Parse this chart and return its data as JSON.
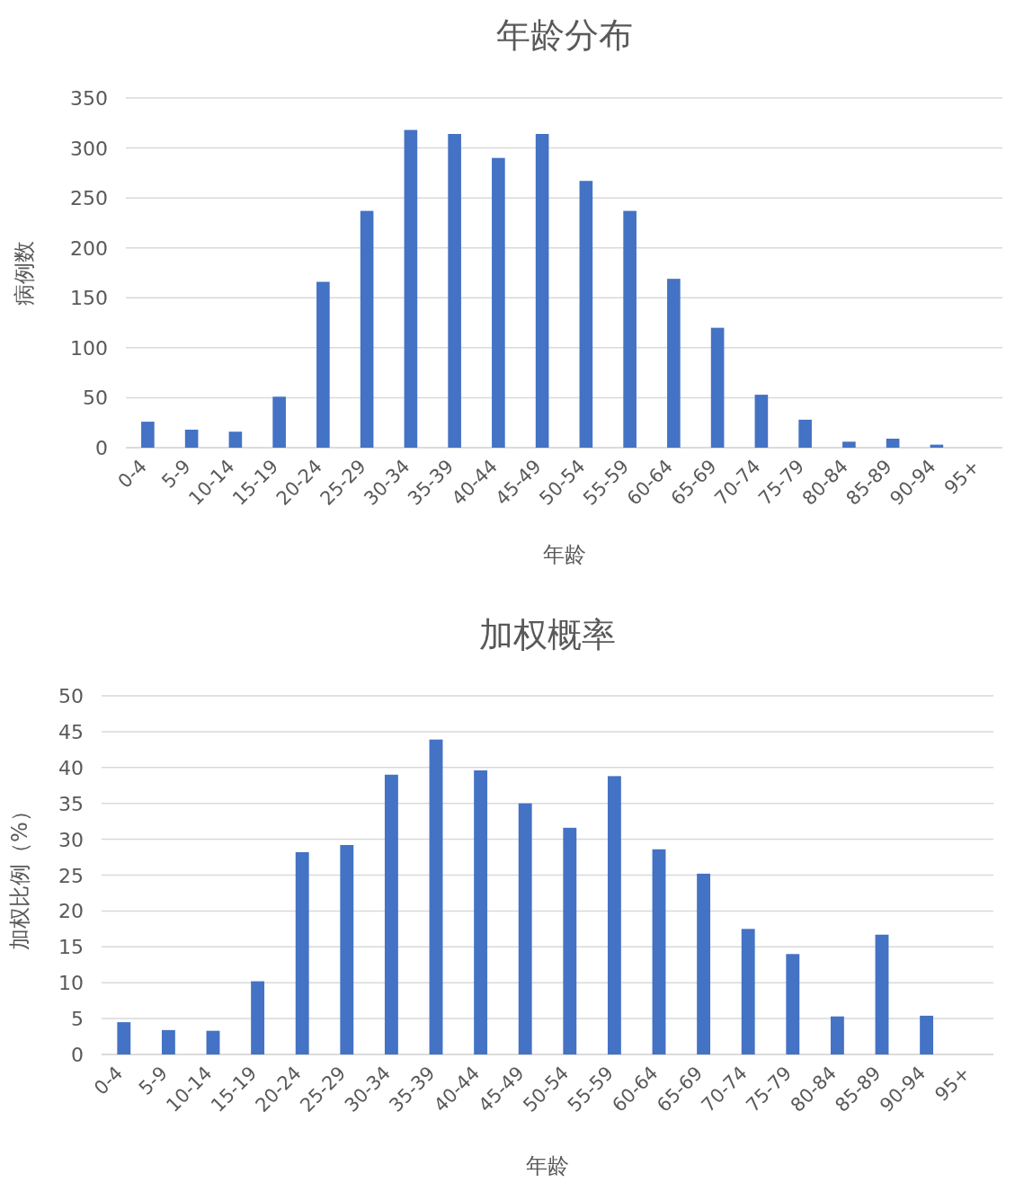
{
  "chart_data": [
    {
      "type": "bar",
      "title": "年龄分布",
      "xlabel": "年龄",
      "ylabel": "病例数",
      "color": "#4472c4",
      "grid": "y",
      "ylim": [
        0,
        350
      ],
      "yticks": [
        0,
        50,
        100,
        150,
        200,
        250,
        300,
        350
      ],
      "categories": [
        "0-4",
        "5-9",
        "10-14",
        "15-19",
        "20-24",
        "25-29",
        "30-34",
        "35-39",
        "40-44",
        "45-49",
        "50-54",
        "55-59",
        "60-64",
        "65-69",
        "70-74",
        "75-79",
        "80-84",
        "85-89",
        "90-94",
        "95+"
      ],
      "values": [
        26,
        18,
        16,
        51,
        166,
        237,
        318,
        314,
        290,
        314,
        267,
        237,
        169,
        120,
        53,
        28,
        6,
        9,
        3,
        null
      ]
    },
    {
      "type": "bar",
      "title": "加权概率",
      "xlabel": "年龄",
      "ylabel": "加权比例（%）",
      "color": "#4472c4",
      "grid": "y",
      "ylim": [
        0,
        50
      ],
      "yticks": [
        0,
        5,
        10,
        15,
        20,
        25,
        30,
        35,
        40,
        45,
        50
      ],
      "categories": [
        "0-4",
        "5-9",
        "10-14",
        "15-19",
        "20-24",
        "25-29",
        "30-34",
        "35-39",
        "40-44",
        "45-49",
        "50-54",
        "55-59",
        "60-64",
        "65-69",
        "70-74",
        "75-79",
        "80-84",
        "85-89",
        "90-94",
        "95+"
      ],
      "values": [
        4.5,
        3.4,
        3.3,
        10.2,
        28.2,
        29.2,
        39,
        43.9,
        39.6,
        35,
        31.6,
        38.8,
        28.6,
        25.2,
        17.5,
        14,
        5.3,
        16.7,
        5.4,
        null
      ]
    }
  ]
}
